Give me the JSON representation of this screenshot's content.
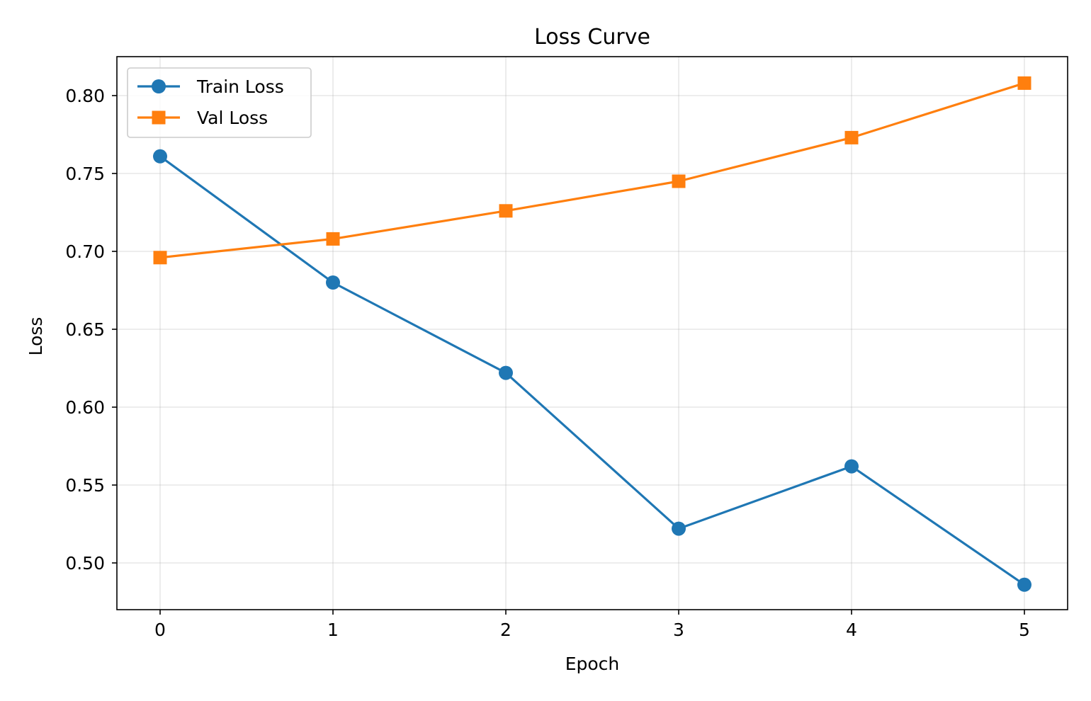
{
  "chart_data": {
    "type": "line",
    "title": "Loss Curve",
    "xlabel": "Epoch",
    "ylabel": "Loss",
    "x": [
      0,
      1,
      2,
      3,
      4,
      5
    ],
    "xticks": [
      "0",
      "1",
      "2",
      "3",
      "4",
      "5"
    ],
    "yticks": [
      "0.50",
      "0.55",
      "0.60",
      "0.65",
      "0.70",
      "0.75",
      "0.80"
    ],
    "xlim": [
      -0.25,
      5.25
    ],
    "ylim": [
      0.47,
      0.825
    ],
    "grid": true,
    "legend_position": "top-left",
    "series": [
      {
        "name": "Train Loss",
        "values": [
          0.761,
          0.68,
          0.622,
          0.522,
          0.562,
          0.486
        ],
        "color": "#1f77b4",
        "marker": "circle"
      },
      {
        "name": "Val Loss",
        "values": [
          0.696,
          0.708,
          0.726,
          0.745,
          0.773,
          0.808
        ],
        "color": "#ff7f0e",
        "marker": "square"
      }
    ]
  }
}
